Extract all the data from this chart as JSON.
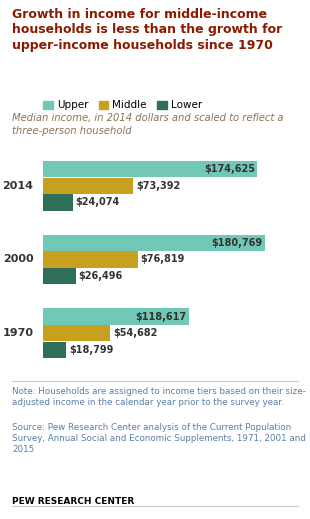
{
  "title": "Growth in income for middle-income\nhouseholds is less than the growth for\nupper-income households since 1970",
  "subtitle": "Median income, in 2014 dollars and scaled to reflect a\nthree-person household",
  "years": [
    "2014",
    "2000",
    "1970"
  ],
  "upper": [
    174625,
    180769,
    118617
  ],
  "middle": [
    73392,
    76819,
    54682
  ],
  "lower": [
    24074,
    26496,
    18799
  ],
  "upper_labels": [
    "$174,625",
    "$180,769",
    "$118,617"
  ],
  "middle_labels": [
    "$73,392",
    "$76,819",
    "$54,682"
  ],
  "lower_labels": [
    "$24,074",
    "$26,496",
    "$18,799"
  ],
  "color_upper": "#72C8B6",
  "color_middle": "#C8A020",
  "color_lower": "#2E6E5B",
  "note": "Note: Households are assigned to income tiers based on their size-\nadjusted income in the calendar year prior to the survey year.",
  "source": "Source: Pew Research Center analysis of the Current Population\nSurvey, Annual Social and Economic Supplements, 1971, 2001 and\n2015",
  "brand": "PEW RESEARCH CENTER",
  "xlim": 210000,
  "background_color": "#FFFFFF",
  "title_color": "#8B1A00",
  "subtitle_color": "#8B7355",
  "note_color": "#5B7FA6",
  "label_color": "#333333"
}
